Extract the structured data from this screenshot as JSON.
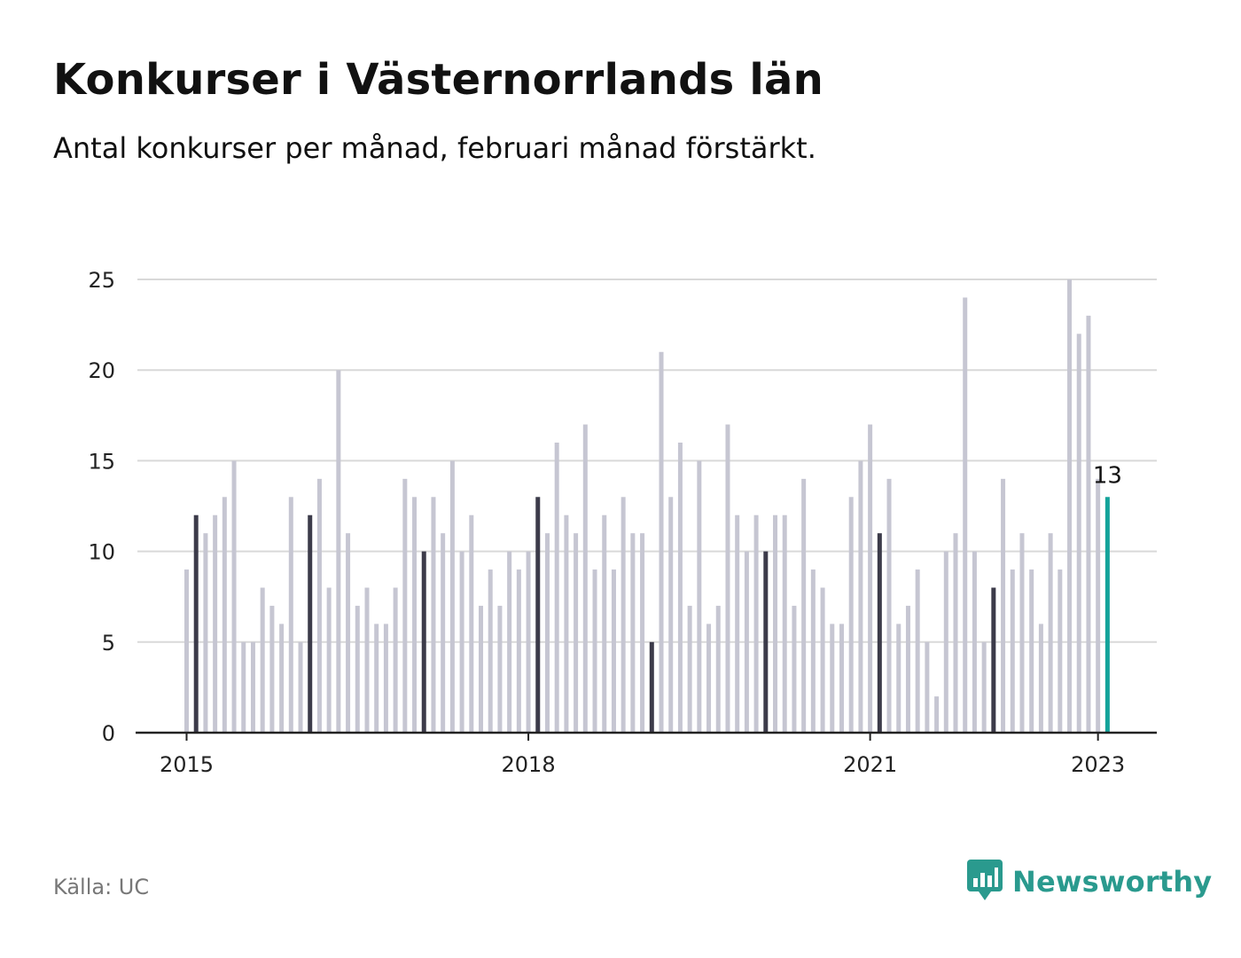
{
  "header": {
    "title": "Konkurser i Västernorrlands län",
    "subtitle": "Antal konkurser per månad, februari månad förstärkt."
  },
  "footer": {
    "source": "Källa: UC",
    "brand": "Newsworthy"
  },
  "colors": {
    "bar_default": "#c6c6d2",
    "bar_february": "#3c3b4a",
    "bar_latest": "#14a39a",
    "grid": "#d9d9d9",
    "axis": "#222222",
    "brand": "#2a9a8e"
  },
  "icons": {
    "brand_logo": "bar-chart-speech-bubble-icon"
  },
  "chart_data": {
    "type": "bar",
    "title": "Konkurser i Västernorrlands län",
    "subtitle": "Antal konkurser per månad, februari månad förstärkt.",
    "xlabel": "",
    "ylabel": "",
    "ylim": [
      0,
      25
    ],
    "yticks": [
      0,
      5,
      10,
      15,
      20,
      25
    ],
    "xticks": [
      "2015",
      "2018",
      "2021",
      "2023"
    ],
    "grid": true,
    "highlight": "februari",
    "latest_label": "13",
    "months": [
      "2015-01",
      "2015-02",
      "2015-03",
      "2015-04",
      "2015-05",
      "2015-06",
      "2015-07",
      "2015-08",
      "2015-09",
      "2015-10",
      "2015-11",
      "2015-12",
      "2016-01",
      "2016-02",
      "2016-03",
      "2016-04",
      "2016-05",
      "2016-06",
      "2016-07",
      "2016-08",
      "2016-09",
      "2016-10",
      "2016-11",
      "2016-12",
      "2017-01",
      "2017-02",
      "2017-03",
      "2017-04",
      "2017-05",
      "2017-06",
      "2017-07",
      "2017-08",
      "2017-09",
      "2017-10",
      "2017-11",
      "2017-12",
      "2018-01",
      "2018-02",
      "2018-03",
      "2018-04",
      "2018-05",
      "2018-06",
      "2018-07",
      "2018-08",
      "2018-09",
      "2018-10",
      "2018-11",
      "2018-12",
      "2019-01",
      "2019-02",
      "2019-03",
      "2019-04",
      "2019-05",
      "2019-06",
      "2019-07",
      "2019-08",
      "2019-09",
      "2019-10",
      "2019-11",
      "2019-12",
      "2020-01",
      "2020-02",
      "2020-03",
      "2020-04",
      "2020-05",
      "2020-06",
      "2020-07",
      "2020-08",
      "2020-09",
      "2020-10",
      "2020-11",
      "2020-12",
      "2021-01",
      "2021-02",
      "2021-03",
      "2021-04",
      "2021-05",
      "2021-06",
      "2021-07",
      "2021-08",
      "2021-09",
      "2021-10",
      "2021-11",
      "2021-12",
      "2022-01",
      "2022-02",
      "2022-03",
      "2022-04",
      "2022-05",
      "2022-06",
      "2022-07",
      "2022-08",
      "2022-09",
      "2022-10",
      "2022-11",
      "2022-12",
      "2023-01",
      "2023-02"
    ],
    "values": [
      9,
      12,
      11,
      12,
      13,
      15,
      5,
      5,
      8,
      7,
      6,
      13,
      5,
      12,
      14,
      8,
      20,
      11,
      7,
      8,
      6,
      6,
      8,
      14,
      13,
      10,
      13,
      11,
      15,
      10,
      12,
      7,
      9,
      7,
      10,
      9,
      10,
      13,
      11,
      16,
      12,
      11,
      17,
      9,
      12,
      9,
      13,
      11,
      11,
      5,
      21,
      13,
      16,
      7,
      15,
      6,
      7,
      17,
      12,
      10,
      12,
      10,
      12,
      12,
      7,
      14,
      9,
      8,
      6,
      6,
      13,
      15,
      17,
      11,
      14,
      6,
      7,
      9,
      5,
      2,
      10,
      11,
      24,
      10,
      5,
      8,
      14,
      9,
      11,
      9,
      6,
      11,
      9,
      25,
      22,
      23,
      14,
      13
    ]
  }
}
